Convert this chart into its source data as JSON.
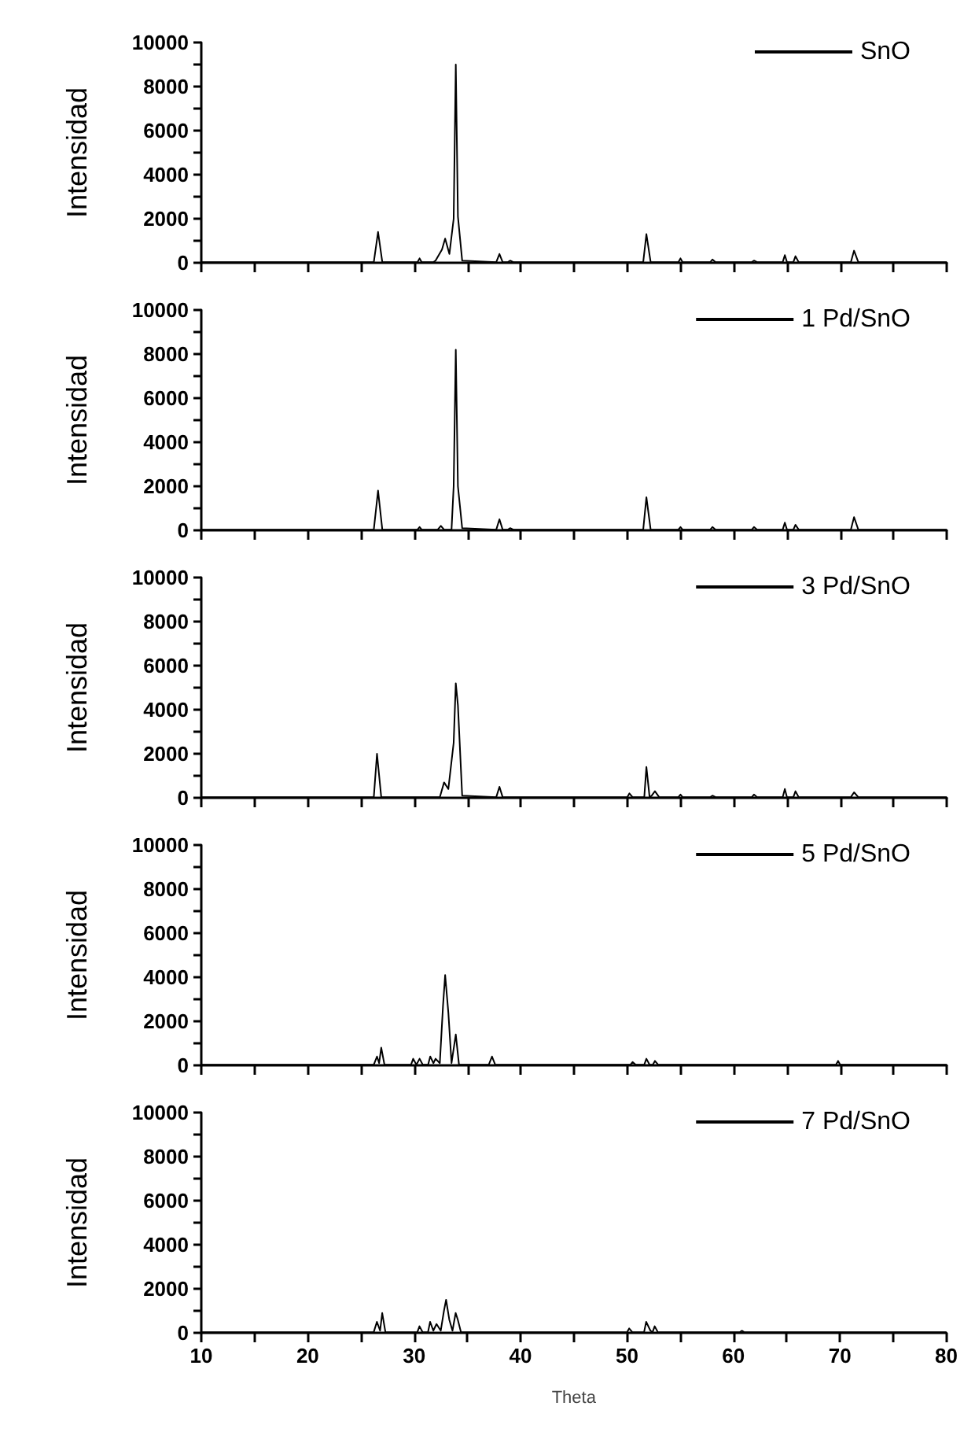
{
  "chart_data": [
    {
      "type": "line",
      "ylabel": "Intensidad",
      "legend": "top right",
      "tick_labels": "y",
      "xlim": [
        10,
        80
      ],
      "ylim": [
        0,
        10000
      ],
      "xticks": [
        10,
        {
          "value": 15,
          "label": null
        },
        20,
        {
          "value": 25,
          "label": null
        },
        30,
        {
          "value": 35,
          "label": null
        },
        40,
        {
          "value": 45,
          "label": null
        },
        50,
        {
          "value": 55,
          "label": null
        },
        60,
        {
          "value": 65,
          "label": null
        },
        70,
        {
          "value": 75,
          "label": null
        },
        80
      ],
      "yticks": [
        0,
        {
          "value": 1000,
          "label": null
        },
        2000,
        {
          "value": 3000,
          "label": null
        },
        4000,
        {
          "value": 5000,
          "label": null
        },
        6000,
        {
          "value": 7000,
          "label": null
        },
        8000,
        {
          "value": 9000,
          "label": null
        },
        10000
      ],
      "x": [
        10,
        26.2,
        26.6,
        27.0,
        30.3,
        30.5,
        30.7,
        31.8,
        32.0,
        32.6,
        32.9,
        33.3,
        33.7,
        33.9,
        34.1,
        34.5,
        37.7,
        38.0,
        38.3,
        38.8,
        39.0,
        39.3,
        51.5,
        51.8,
        52.2,
        54.8,
        55.0,
        55.2,
        57.8,
        58.0,
        58.3,
        61.7,
        61.9,
        62.2,
        64.6,
        64.8,
        65.0,
        65.6,
        65.8,
        66.1,
        71.0,
        71.3,
        71.7,
        80
      ],
      "series": [
        {
          "name": "SnO",
          "color": "#000000",
          "values": [
            30,
            30,
            1400,
            30,
            30,
            200,
            30,
            30,
            100,
            600,
            1100,
            400,
            2000,
            9000,
            2100,
            100,
            30,
            400,
            30,
            30,
            100,
            30,
            30,
            1300,
            30,
            30,
            200,
            30,
            30,
            150,
            30,
            30,
            100,
            30,
            30,
            350,
            30,
            30,
            300,
            30,
            30,
            550,
            30,
            30
          ]
        }
      ]
    },
    {
      "type": "line",
      "ylabel": "Intensidad",
      "legend": "top right",
      "tick_labels": "y",
      "xlim": [
        10,
        80
      ],
      "ylim": [
        0,
        10000
      ],
      "xticks": [
        10,
        {
          "value": 15,
          "label": null
        },
        20,
        {
          "value": 25,
          "label": null
        },
        30,
        {
          "value": 35,
          "label": null
        },
        40,
        {
          "value": 45,
          "label": null
        },
        50,
        {
          "value": 55,
          "label": null
        },
        60,
        {
          "value": 65,
          "label": null
        },
        70,
        {
          "value": 75,
          "label": null
        },
        80
      ],
      "yticks": [
        0,
        {
          "value": 1000,
          "label": null
        },
        2000,
        {
          "value": 3000,
          "label": null
        },
        4000,
        {
          "value": 5000,
          "label": null
        },
        6000,
        {
          "value": 7000,
          "label": null
        },
        8000,
        {
          "value": 9000,
          "label": null
        },
        10000
      ],
      "x": [
        10,
        26.2,
        26.6,
        27.0,
        30.3,
        30.5,
        30.7,
        32.2,
        32.5,
        32.8,
        33.5,
        33.7,
        33.9,
        34.1,
        34.5,
        37.7,
        38.0,
        38.3,
        38.8,
        39.0,
        39.3,
        51.5,
        51.8,
        52.2,
        54.8,
        55.0,
        55.2,
        57.8,
        58.0,
        58.3,
        61.7,
        61.9,
        62.2,
        64.6,
        64.8,
        65.0,
        65.6,
        65.8,
        66.1,
        71.0,
        71.3,
        71.7,
        80
      ],
      "series": [
        {
          "name": "1 Pd/SnO",
          "color": "#000000",
          "values": [
            30,
            30,
            1800,
            30,
            30,
            150,
            30,
            30,
            200,
            30,
            30,
            2000,
            8200,
            2000,
            100,
            30,
            500,
            30,
            30,
            100,
            30,
            30,
            1500,
            30,
            30,
            150,
            30,
            30,
            150,
            30,
            30,
            150,
            30,
            30,
            350,
            30,
            30,
            250,
            30,
            30,
            600,
            30,
            30
          ]
        }
      ]
    },
    {
      "type": "line",
      "ylabel": "Intensidad",
      "legend": "top right",
      "tick_labels": "y",
      "xlim": [
        10,
        80
      ],
      "ylim": [
        0,
        10000
      ],
      "xticks": [
        10,
        {
          "value": 15,
          "label": null
        },
        20,
        {
          "value": 25,
          "label": null
        },
        30,
        {
          "value": 35,
          "label": null
        },
        40,
        {
          "value": 45,
          "label": null
        },
        50,
        {
          "value": 55,
          "label": null
        },
        60,
        {
          "value": 65,
          "label": null
        },
        70,
        {
          "value": 75,
          "label": null
        },
        80
      ],
      "yticks": [
        0,
        {
          "value": 1000,
          "label": null
        },
        2000,
        {
          "value": 3000,
          "label": null
        },
        4000,
        {
          "value": 5000,
          "label": null
        },
        6000,
        {
          "value": 7000,
          "label": null
        },
        8000,
        {
          "value": 9000,
          "label": null
        },
        10000
      ],
      "x": [
        10,
        26.2,
        26.5,
        26.9,
        32.4,
        32.8,
        33.2,
        33.7,
        33.9,
        34.1,
        34.5,
        37.7,
        38.0,
        38.3,
        50.0,
        50.2,
        50.5,
        51.6,
        51.8,
        52.1,
        52.3,
        52.6,
        53.0,
        54.8,
        55.0,
        55.2,
        57.8,
        58.0,
        58.3,
        61.7,
        61.9,
        62.2,
        64.6,
        64.8,
        65.0,
        65.6,
        65.8,
        66.1,
        71.0,
        71.3,
        71.7,
        80
      ],
      "series": [
        {
          "name": "3 Pd/SnO",
          "color": "#000000",
          "values": [
            30,
            30,
            2000,
            30,
            30,
            700,
            400,
            2500,
            5200,
            4200,
            100,
            30,
            500,
            30,
            30,
            200,
            30,
            30,
            1400,
            30,
            100,
            300,
            30,
            30,
            150,
            30,
            30,
            100,
            30,
            30,
            150,
            30,
            30,
            400,
            30,
            30,
            300,
            30,
            30,
            250,
            30,
            30
          ]
        }
      ]
    },
    {
      "type": "line",
      "ylabel": "Intensidad",
      "legend": "top right",
      "tick_labels": "y",
      "xlim": [
        10,
        80
      ],
      "ylim": [
        0,
        10000
      ],
      "xticks": [
        10,
        {
          "value": 15,
          "label": null
        },
        20,
        {
          "value": 25,
          "label": null
        },
        30,
        {
          "value": 35,
          "label": null
        },
        40,
        {
          "value": 45,
          "label": null
        },
        50,
        {
          "value": 55,
          "label": null
        },
        60,
        {
          "value": 65,
          "label": null
        },
        70,
        {
          "value": 75,
          "label": null
        },
        80
      ],
      "yticks": [
        0,
        {
          "value": 1000,
          "label": null
        },
        2000,
        {
          "value": 3000,
          "label": null
        },
        4000,
        {
          "value": 5000,
          "label": null
        },
        6000,
        {
          "value": 7000,
          "label": null
        },
        8000,
        {
          "value": 9000,
          "label": null
        },
        10000
      ],
      "x": [
        10,
        26.2,
        26.5,
        26.7,
        26.9,
        27.2,
        29.7,
        29.9,
        30.2,
        30.5,
        30.8,
        31.3,
        31.5,
        31.8,
        32.0,
        32.4,
        32.7,
        32.9,
        33.2,
        33.5,
        33.9,
        34.2,
        37.0,
        37.3,
        37.6,
        50.3,
        50.5,
        50.8,
        51.6,
        51.8,
        52.1,
        52.4,
        52.6,
        52.9,
        69.6,
        69.8,
        70.0,
        80
      ],
      "series": [
        {
          "name": "5 Pd/SnO",
          "color": "#000000",
          "values": [
            30,
            30,
            400,
            100,
            800,
            30,
            30,
            300,
            30,
            300,
            30,
            30,
            400,
            100,
            300,
            100,
            2700,
            4100,
            2400,
            100,
            1400,
            30,
            30,
            400,
            30,
            30,
            150,
            30,
            30,
            300,
            30,
            30,
            200,
            30,
            30,
            200,
            30,
            30
          ]
        }
      ]
    },
    {
      "type": "line",
      "ylabel": "Intensidad",
      "xlabel": "Theta",
      "legend": "top right",
      "xlim": [
        10,
        80
      ],
      "ylim": [
        0,
        10000
      ],
      "xticks": [
        10,
        {
          "value": 15,
          "label": null
        },
        20,
        {
          "value": 25,
          "label": null
        },
        30,
        {
          "value": 35,
          "label": null
        },
        40,
        {
          "value": 45,
          "label": null
        },
        50,
        {
          "value": 55,
          "label": null
        },
        60,
        {
          "value": 65,
          "label": null
        },
        70,
        {
          "value": 75,
          "label": null
        },
        80
      ],
      "yticks": [
        0,
        {
          "value": 1000,
          "label": null
        },
        2000,
        {
          "value": 3000,
          "label": null
        },
        4000,
        {
          "value": 5000,
          "label": null
        },
        6000,
        {
          "value": 7000,
          "label": null
        },
        8000,
        {
          "value": 9000,
          "label": null
        },
        10000
      ],
      "x": [
        10,
        26.2,
        26.5,
        26.8,
        27.0,
        27.3,
        30.3,
        30.5,
        30.8,
        31.3,
        31.5,
        31.8,
        32.1,
        32.5,
        32.8,
        33.0,
        33.3,
        33.6,
        33.9,
        34.1,
        34.4,
        50.0,
        50.2,
        50.5,
        51.6,
        51.8,
        52.2,
        52.4,
        52.6,
        52.9,
        60.6,
        60.8,
        61.0,
        80
      ],
      "series": [
        {
          "name": "7 Pd/SnO",
          "color": "#000000",
          "values": [
            30,
            30,
            500,
            100,
            900,
            30,
            30,
            300,
            30,
            30,
            500,
            100,
            400,
            100,
            1000,
            1500,
            600,
            100,
            900,
            600,
            30,
            30,
            200,
            30,
            30,
            500,
            100,
            30,
            300,
            30,
            30,
            100,
            30,
            30
          ]
        }
      ]
    }
  ]
}
